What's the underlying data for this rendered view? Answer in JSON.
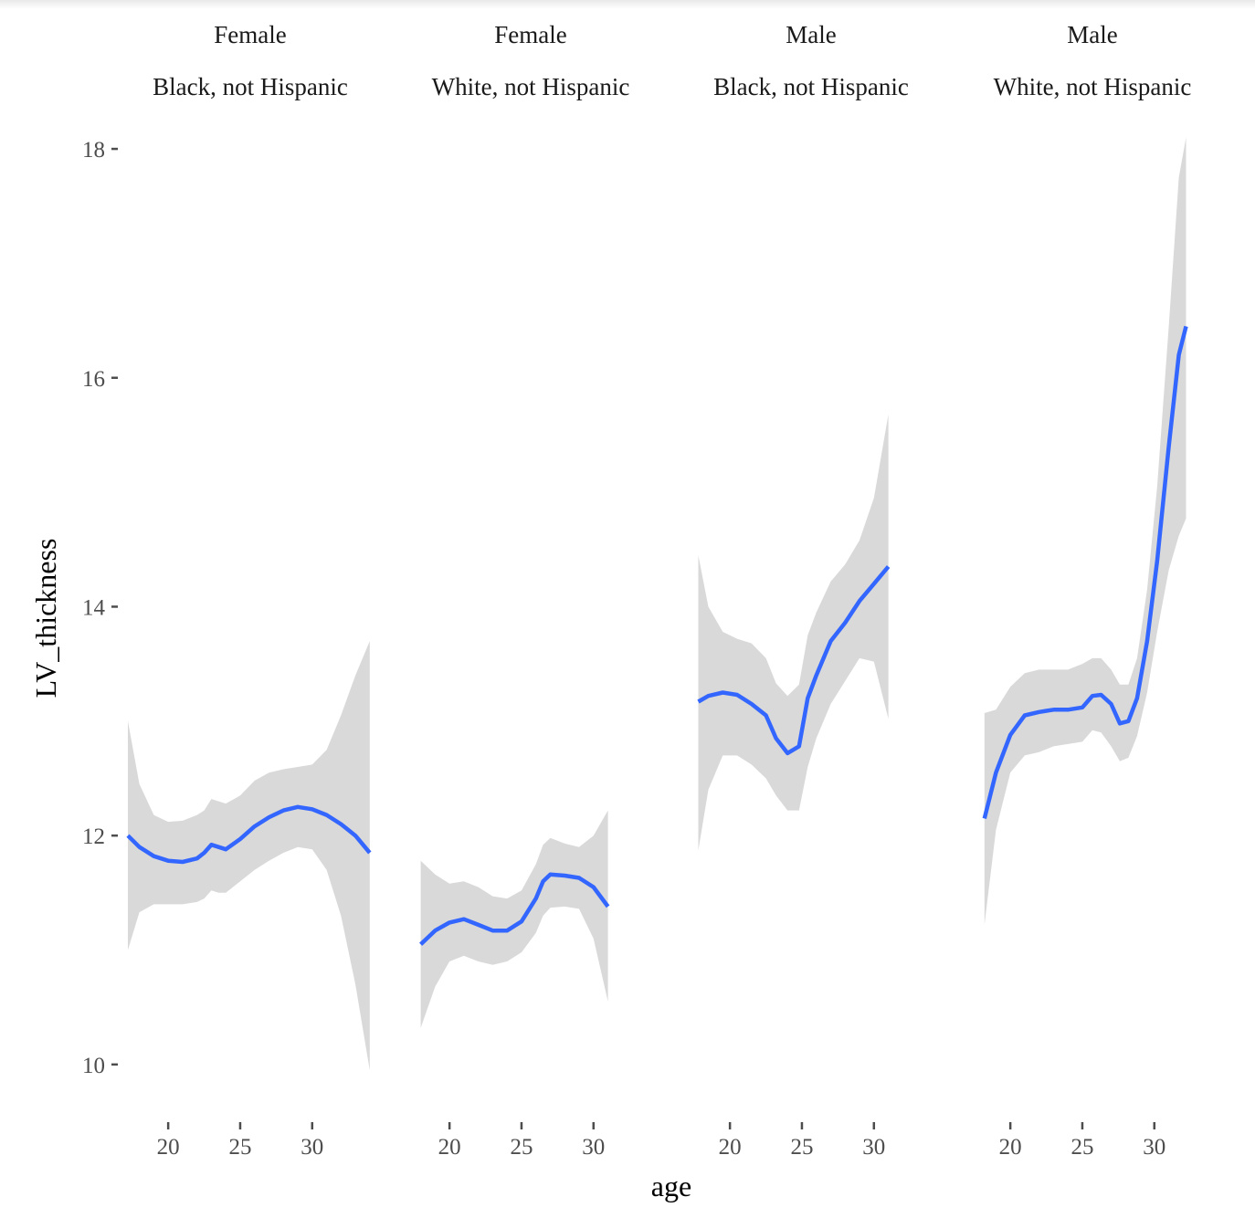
{
  "chart_data": {
    "type": "line",
    "xlabel": "age",
    "ylabel": "LV_thickness",
    "ylim": [
      9.6,
      18.2
    ],
    "yticks": [
      10,
      12,
      14,
      16,
      18
    ],
    "xlim": [
      17.2,
      34.2
    ],
    "xticks": [
      20,
      25,
      30
    ],
    "grid": false,
    "colors": {
      "line": "#3366FF",
      "band": "#D9D9D9",
      "ticks": "#4D4D4D"
    },
    "facets": [
      {
        "strip": [
          "Female",
          "Black, not Hispanic"
        ],
        "x": [
          17.2,
          18,
          19,
          20,
          21,
          22,
          22.5,
          23,
          23.5,
          24,
          25,
          26,
          27,
          28,
          29,
          30,
          31,
          32,
          33,
          34
        ],
        "y": [
          12.0,
          11.9,
          11.82,
          11.78,
          11.77,
          11.8,
          11.85,
          11.92,
          11.9,
          11.88,
          11.97,
          12.08,
          12.16,
          12.22,
          12.25,
          12.23,
          12.18,
          12.1,
          12.0,
          11.85
        ],
        "ymin": [
          11.0,
          11.33,
          11.4,
          11.4,
          11.4,
          11.42,
          11.45,
          11.52,
          11.5,
          11.5,
          11.6,
          11.7,
          11.78,
          11.85,
          11.9,
          11.88,
          11.7,
          11.3,
          10.7,
          9.95
        ],
        "ymax": [
          13.0,
          12.45,
          12.18,
          12.12,
          12.13,
          12.18,
          12.22,
          12.32,
          12.3,
          12.28,
          12.35,
          12.48,
          12.55,
          12.58,
          12.6,
          12.62,
          12.75,
          13.05,
          13.4,
          13.7
        ]
      },
      {
        "strip": [
          "Female",
          "White, not Hispanic"
        ],
        "x": [
          18,
          19,
          20,
          21,
          22,
          23,
          24,
          25,
          26,
          26.5,
          27,
          28,
          29,
          30,
          31
        ],
        "y": [
          11.05,
          11.17,
          11.24,
          11.27,
          11.22,
          11.17,
          11.17,
          11.25,
          11.45,
          11.6,
          11.66,
          11.65,
          11.63,
          11.55,
          11.38
        ],
        "ymin": [
          10.32,
          10.68,
          10.9,
          10.95,
          10.9,
          10.87,
          10.9,
          10.98,
          11.15,
          11.3,
          11.37,
          11.38,
          11.36,
          11.1,
          10.55
        ],
        "ymax": [
          11.78,
          11.66,
          11.58,
          11.6,
          11.55,
          11.47,
          11.45,
          11.52,
          11.75,
          11.92,
          11.98,
          11.93,
          11.9,
          12.0,
          12.22
        ]
      },
      {
        "strip": [
          "Male",
          "Black, not Hispanic"
        ],
        "x": [
          17.8,
          18.5,
          19.5,
          20.5,
          21.5,
          22.5,
          23.2,
          24,
          24.8,
          25.4,
          26,
          27,
          28,
          29,
          30,
          31
        ],
        "y": [
          13.17,
          13.22,
          13.25,
          13.23,
          13.15,
          13.05,
          12.85,
          12.72,
          12.78,
          13.2,
          13.4,
          13.7,
          13.86,
          14.05,
          14.2,
          14.35
        ],
        "ymin": [
          11.87,
          12.4,
          12.7,
          12.7,
          12.62,
          12.5,
          12.35,
          12.22,
          12.22,
          12.6,
          12.85,
          13.15,
          13.35,
          13.55,
          13.52,
          13.02
        ],
        "ymax": [
          14.45,
          14.0,
          13.78,
          13.72,
          13.68,
          13.55,
          13.33,
          13.22,
          13.32,
          13.75,
          13.95,
          14.22,
          14.37,
          14.58,
          14.95,
          15.68
        ]
      },
      {
        "strip": [
          "Male",
          "White, not Hispanic"
        ],
        "x": [
          18.2,
          19,
          20,
          21,
          22,
          23,
          24,
          25,
          25.7,
          26.3,
          27,
          27.6,
          28.2,
          28.8,
          29.5,
          30.2,
          31,
          31.7,
          32.2
        ],
        "y": [
          12.15,
          12.55,
          12.88,
          13.05,
          13.08,
          13.1,
          13.1,
          13.12,
          13.22,
          13.23,
          13.15,
          12.98,
          13.0,
          13.2,
          13.7,
          14.4,
          15.4,
          16.2,
          16.45
        ],
        "ymin": [
          11.22,
          12.05,
          12.55,
          12.7,
          12.73,
          12.78,
          12.8,
          12.82,
          12.92,
          12.9,
          12.78,
          12.65,
          12.68,
          12.87,
          13.25,
          13.78,
          14.32,
          14.62,
          14.77
        ],
        "ymax": [
          13.07,
          13.1,
          13.3,
          13.42,
          13.45,
          13.45,
          13.45,
          13.5,
          13.55,
          13.55,
          13.45,
          13.32,
          13.32,
          13.55,
          14.15,
          15.05,
          16.45,
          17.75,
          18.1
        ]
      }
    ]
  }
}
